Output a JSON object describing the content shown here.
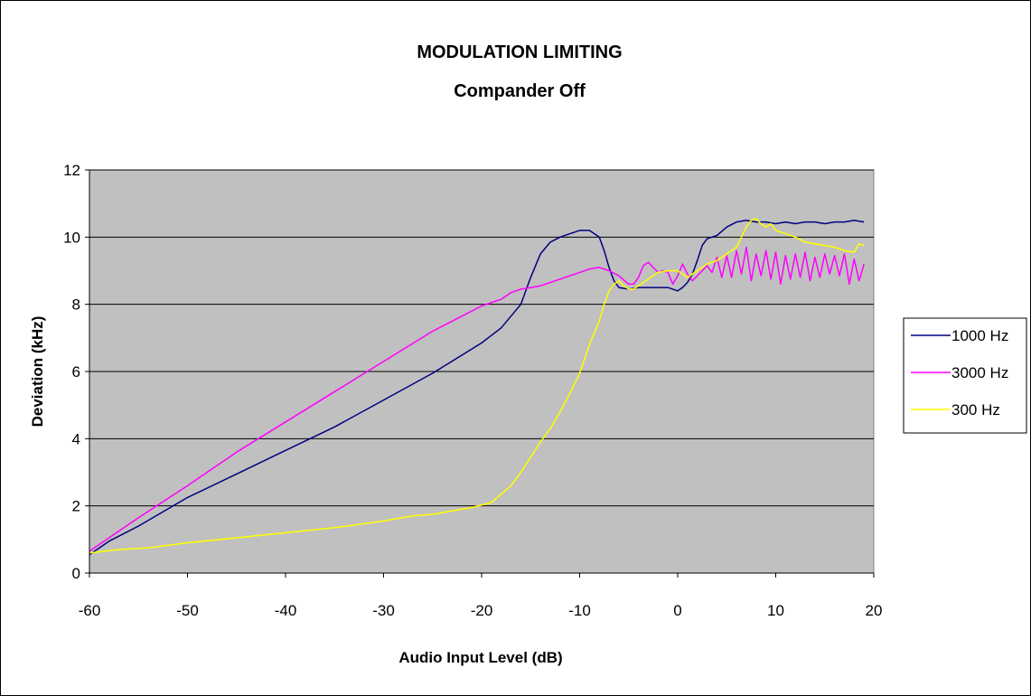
{
  "chart_data": {
    "type": "line",
    "title": "MODULATION LIMITING",
    "subtitle": "Compander Off",
    "xlabel": "Audio Input Level (dB)",
    "ylabel": "Deviation (kHz)",
    "xlim": [
      -60,
      20
    ],
    "ylim": [
      0,
      12
    ],
    "x_ticks": [
      "-60",
      "-50",
      "-40",
      "-30",
      "-20",
      "-10",
      "0",
      "10",
      "20"
    ],
    "y_ticks": [
      "0",
      "2",
      "4",
      "6",
      "8",
      "10",
      "12"
    ],
    "x_tick_values": [
      -60,
      -50,
      -40,
      -30,
      -20,
      -10,
      0,
      10,
      20
    ],
    "y_tick_values": [
      0,
      2,
      4,
      6,
      8,
      10,
      12
    ],
    "grid": "horizontal",
    "plot_background": "#c0c0c0",
    "legend_position": "right",
    "series": [
      {
        "name": "1000 Hz",
        "color": "#000080",
        "x": [
          -60,
          -58,
          -55,
          -50,
          -45,
          -40,
          -35,
          -30,
          -25,
          -20,
          -18,
          -16,
          -15,
          -14,
          -13,
          -12,
          -11,
          -10,
          -9,
          -8,
          -7.5,
          -7,
          -6.5,
          -6,
          -5,
          -4,
          -3,
          -2,
          -1,
          0,
          0.5,
          1,
          1.5,
          2,
          2.5,
          3,
          4,
          5,
          6,
          7,
          8,
          9,
          10,
          11,
          12,
          13,
          14,
          15,
          16,
          17,
          18,
          19
        ],
        "y": [
          0.55,
          0.95,
          1.4,
          2.25,
          2.95,
          3.65,
          4.35,
          5.15,
          5.95,
          6.85,
          7.3,
          8.0,
          8.8,
          9.5,
          9.85,
          10.0,
          10.1,
          10.2,
          10.2,
          10.0,
          9.6,
          9.1,
          8.7,
          8.5,
          8.45,
          8.5,
          8.5,
          8.5,
          8.5,
          8.4,
          8.5,
          8.65,
          8.9,
          9.3,
          9.75,
          9.95,
          10.05,
          10.3,
          10.45,
          10.5,
          10.45,
          10.45,
          10.4,
          10.45,
          10.4,
          10.45,
          10.45,
          10.4,
          10.45,
          10.45,
          10.5,
          10.45
        ]
      },
      {
        "name": "3000 Hz",
        "color": "#ff00ff",
        "x": [
          -60,
          -55,
          -50,
          -45,
          -40,
          -35,
          -30,
          -25,
          -20,
          -18,
          -17,
          -16,
          -15,
          -14,
          -13,
          -12,
          -11,
          -10,
          -9,
          -8,
          -7,
          -6,
          -5,
          -4.5,
          -4,
          -3.5,
          -3,
          -2.5,
          -2,
          -1.5,
          -1,
          -0.5,
          0,
          0.5,
          1,
          1.5,
          2,
          3,
          3.5,
          4,
          4.5,
          5,
          5.5,
          6,
          6.5,
          7,
          7.5,
          8,
          8.5,
          9,
          9.5,
          10,
          10.5,
          11,
          11.5,
          12,
          12.5,
          13,
          13.5,
          14,
          14.5,
          15,
          15.5,
          16,
          16.5,
          17,
          17.5,
          18,
          18.5,
          19
        ],
        "y": [
          0.65,
          1.65,
          2.6,
          3.6,
          4.5,
          5.4,
          6.3,
          7.2,
          7.95,
          8.15,
          8.35,
          8.45,
          8.5,
          8.55,
          8.65,
          8.75,
          8.85,
          8.95,
          9.05,
          9.1,
          9.0,
          8.85,
          8.6,
          8.6,
          8.8,
          9.15,
          9.25,
          9.1,
          8.95,
          9.0,
          8.95,
          8.6,
          8.85,
          9.2,
          8.9,
          8.7,
          8.85,
          9.15,
          8.95,
          9.4,
          8.8,
          9.45,
          8.8,
          9.6,
          8.9,
          9.7,
          8.7,
          9.5,
          8.85,
          9.6,
          8.75,
          9.55,
          8.6,
          9.45,
          8.75,
          9.5,
          8.8,
          9.55,
          8.7,
          9.4,
          8.8,
          9.5,
          8.9,
          9.45,
          8.85,
          9.5,
          8.6,
          9.35,
          8.7,
          9.2
        ]
      },
      {
        "name": "300 Hz",
        "color": "#ffff00",
        "x": [
          -60,
          -57,
          -54,
          -50,
          -45,
          -40,
          -35,
          -30,
          -27,
          -25,
          -23,
          -21,
          -19,
          -17,
          -16,
          -15,
          -14,
          -13,
          -12,
          -11,
          -10,
          -9,
          -8,
          -7.5,
          -7,
          -6.5,
          -6,
          -5.5,
          -5,
          -4.5,
          -4,
          -3,
          -2,
          -1,
          0,
          1,
          2,
          3,
          4,
          5,
          6,
          6.5,
          7,
          7.5,
          8,
          8.5,
          9,
          9.5,
          10,
          11,
          12,
          13,
          14,
          15,
          16,
          17,
          18,
          18.5,
          19
        ],
        "y": [
          0.6,
          0.7,
          0.75,
          0.9,
          1.05,
          1.2,
          1.35,
          1.55,
          1.7,
          1.75,
          1.85,
          1.95,
          2.1,
          2.6,
          3.0,
          3.45,
          3.9,
          4.3,
          4.8,
          5.35,
          5.95,
          6.8,
          7.5,
          8.0,
          8.4,
          8.6,
          8.7,
          8.55,
          8.45,
          8.45,
          8.55,
          8.75,
          8.95,
          9.0,
          9.0,
          8.8,
          9.0,
          9.2,
          9.3,
          9.5,
          9.7,
          10.0,
          10.3,
          10.5,
          10.55,
          10.4,
          10.3,
          10.4,
          10.2,
          10.1,
          10.0,
          9.85,
          9.8,
          9.75,
          9.7,
          9.6,
          9.55,
          9.8,
          9.75
        ]
      }
    ]
  }
}
